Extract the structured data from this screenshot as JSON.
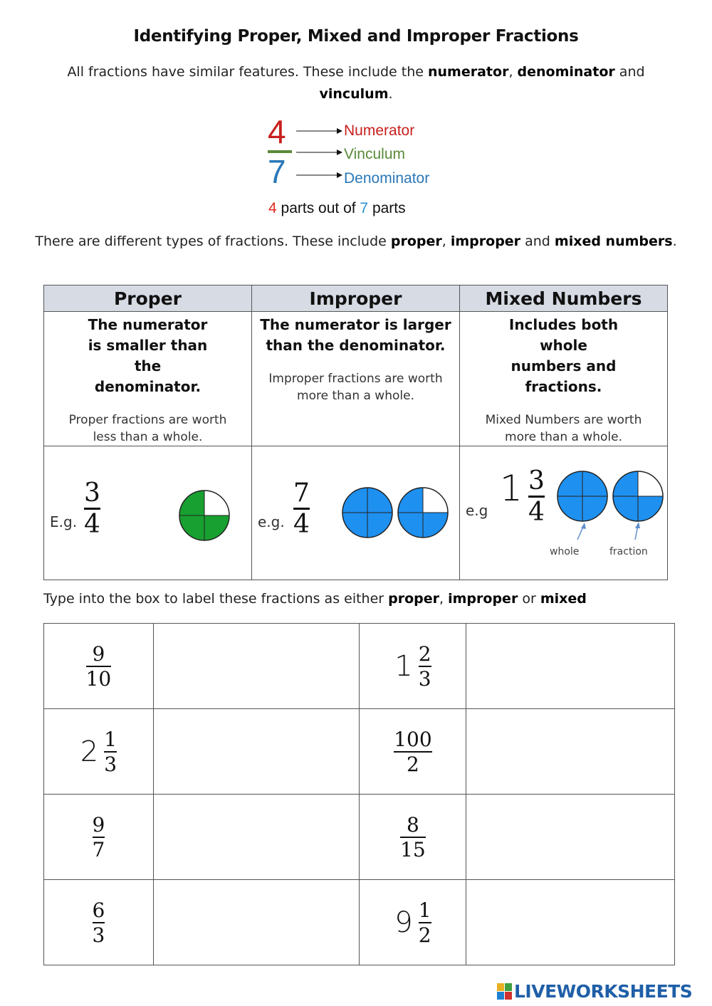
{
  "title": "Identifying Proper, Mixed and Improper Fractions",
  "intro": {
    "text1": "All fractions have similar features. These include the ",
    "b1": "numerator",
    "sep": ", ",
    "b2": "denominator",
    "text2": " and ",
    "b3": "vinculum",
    "end": "."
  },
  "diagram": {
    "numerator_digit": "4",
    "denominator_digit": "7",
    "labels": {
      "numerator": "Numerator",
      "vinculum": "Vinculum",
      "denominator": "Denominator"
    },
    "caption": {
      "n": "4",
      "mid": " parts out of ",
      "d": "7",
      "end": " parts"
    },
    "colors": {
      "numerator": "#c8201e",
      "vinculum": "#5a8a3a",
      "denominator": "#2a78b8"
    }
  },
  "types_intro": {
    "text1": "There are different types of fractions. These include ",
    "b1": "proper",
    "sep": ", ",
    "b2": "improper",
    "text2": " and ",
    "b3": "mixed numbers",
    "end": "."
  },
  "types_table": {
    "columns": [
      {
        "header": "Proper",
        "rule": "The numerator is smaller than the denominator.",
        "note": "Proper fractions are worth less than a whole.",
        "eg": "E.g.",
        "numerator": "3",
        "denominator": "4"
      },
      {
        "header": "Improper",
        "rule": "The numerator is larger than the denominator.",
        "note": "Improper fractions are worth more than a whole.",
        "eg": "e.g.",
        "numerator": "7",
        "denominator": "4"
      },
      {
        "header": "Mixed Numbers",
        "rule": "Includes both whole numbers and fractions.",
        "note": "Mixed Numbers are worth more than a whole.",
        "eg": "e.g",
        "whole": "1",
        "numerator": "3",
        "denominator": "4",
        "label_whole": "whole",
        "label_fraction": "fraction"
      }
    ],
    "colors": {
      "proper_pie": "#18a030",
      "blue_pie": "#1e90f0",
      "header_bg": "#d6dbe4"
    }
  },
  "instruction": {
    "text": "Type into the box to label these fractions as either ",
    "b1": "proper",
    "sep": ", ",
    "b2": "improper",
    "text2": " or ",
    "b3": "mixed"
  },
  "exercise": {
    "rows": [
      [
        {
          "numerator": "9",
          "denominator": "10",
          "answer": ""
        },
        {
          "whole": "1",
          "numerator": "2",
          "denominator": "3",
          "answer": ""
        }
      ],
      [
        {
          "whole": "2",
          "numerator": "1",
          "denominator": "3",
          "answer": ""
        },
        {
          "numerator": "100",
          "denominator": "2",
          "answer": ""
        }
      ],
      [
        {
          "numerator": "9",
          "denominator": "7",
          "answer": ""
        },
        {
          "numerator": "8",
          "denominator": "15",
          "answer": ""
        }
      ],
      [
        {
          "numerator": "6",
          "denominator": "3",
          "answer": ""
        },
        {
          "whole": "9",
          "numerator": "1",
          "denominator": "2",
          "answer": ""
        }
      ]
    ]
  },
  "logo": {
    "text": "LIVEWORKSHEETS"
  }
}
